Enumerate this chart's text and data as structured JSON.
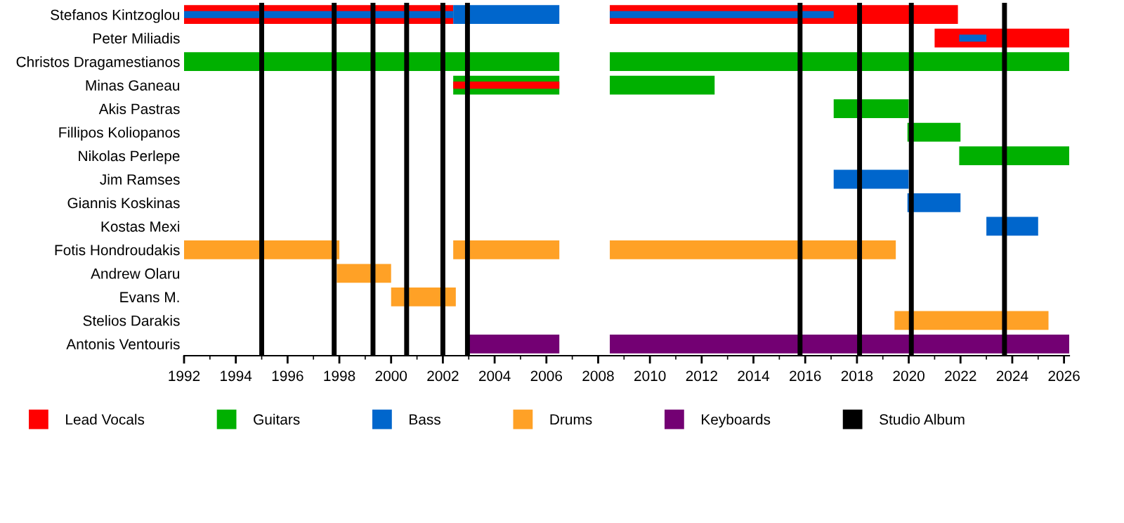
{
  "chart_data": {
    "type": "bar",
    "orientation": "horizontal",
    "categories": [
      "Stefanos Kintzoglou",
      "Peter Miliadis",
      "Christos Dragamestianos",
      "Minas Ganeau",
      "Akis Pastras",
      "Fillipos Koliopanos",
      "Nikolas Perlepe",
      "Jim Ramses",
      "Giannis Koskinas",
      "Kostas Mexi",
      "Fotis Hondroudakis",
      "Andrew Olaru",
      "Evans M.",
      "Stelios Darakis",
      "Antonis Ventouris"
    ],
    "series": [
      {
        "name": "Lead Vocals",
        "color": "#ff0000",
        "base": [
          1992,
          2021,
          null,
          null,
          null,
          null,
          null,
          null,
          null,
          null,
          null,
          null,
          null,
          null,
          null
        ],
        "values": [
          10.4,
          5.2,
          null,
          null,
          null,
          null,
          null,
          null,
          null,
          null,
          null,
          null,
          null,
          null,
          null
        ]
      },
      {
        "color": "#ff0000",
        "base": [
          2008.45,
          null,
          null,
          null,
          null,
          null,
          null,
          null,
          null,
          null,
          null,
          null,
          null,
          null,
          null
        ],
        "values": [
          13.45,
          null,
          null,
          null,
          null,
          null,
          null,
          null,
          null,
          null,
          null,
          null,
          null,
          null,
          null
        ]
      },
      {
        "name": "Guitars",
        "color": "#00b000",
        "base": [
          null,
          null,
          1992,
          2002.4,
          2017.1,
          null,
          2021.95,
          null,
          null,
          null,
          null,
          null,
          null,
          null,
          null
        ],
        "values": [
          null,
          null,
          14.5,
          4.1,
          2.9,
          null,
          4.25,
          null,
          null,
          null,
          null,
          null,
          null,
          null,
          null
        ]
      },
      {
        "color": "#00b000",
        "base": [
          null,
          null,
          2008.45,
          2008.45,
          null,
          2019.95,
          null,
          null,
          null,
          null,
          null,
          null,
          null,
          null,
          null
        ],
        "values": [
          null,
          null,
          17.75,
          4.05,
          null,
          2.05,
          null,
          null,
          null,
          null,
          null,
          null,
          null,
          null,
          null
        ]
      },
      {
        "color": "#ff0000",
        "base": [
          null,
          null,
          null,
          2002.4,
          null,
          null,
          null,
          null,
          null,
          null,
          null,
          null,
          null,
          null,
          null
        ],
        "values": [
          null,
          null,
          null,
          4.1,
          null,
          null,
          null,
          null,
          null,
          null,
          null,
          null,
          null,
          null,
          null
        ]
      },
      {
        "name": "Bass",
        "color": "#0066cc",
        "base": [
          2002.4,
          2021.95,
          null,
          null,
          null,
          null,
          null,
          2017.1,
          null,
          2023,
          null,
          null,
          null,
          null,
          null
        ],
        "values": [
          4.1,
          1.05,
          null,
          null,
          null,
          null,
          null,
          2.9,
          null,
          2.0,
          null,
          null,
          null,
          null,
          null
        ]
      },
      {
        "color": "#0066cc",
        "base": [
          1992,
          null,
          null,
          null,
          null,
          null,
          null,
          null,
          2019.95,
          null,
          null,
          null,
          null,
          null,
          null
        ],
        "values": [
          10.4,
          null,
          null,
          null,
          null,
          null,
          null,
          null,
          2.05,
          null,
          null,
          null,
          null,
          null,
          null
        ]
      },
      {
        "color": "#0066cc",
        "base": [
          2008.45,
          null,
          null,
          null,
          null,
          null,
          null,
          null,
          null,
          null,
          null,
          null,
          null,
          null,
          null
        ],
        "values": [
          8.65,
          null,
          null,
          null,
          null,
          null,
          null,
          null,
          null,
          null,
          null,
          null,
          null,
          null,
          null
        ]
      },
      {
        "name": "Drums",
        "color": "#ffa126",
        "base": [
          null,
          null,
          null,
          null,
          null,
          null,
          null,
          null,
          null,
          null,
          1992,
          1997.9,
          2000.0,
          2019.45,
          null
        ],
        "values": [
          null,
          null,
          null,
          null,
          null,
          null,
          null,
          null,
          null,
          null,
          6.0,
          2.1,
          2.5,
          5.95,
          null
        ]
      },
      {
        "color": "#ffa126",
        "base": [
          null,
          null,
          null,
          null,
          null,
          null,
          null,
          null,
          null,
          null,
          2002.4,
          null,
          null,
          null,
          null
        ],
        "values": [
          null,
          null,
          null,
          null,
          null,
          null,
          null,
          null,
          null,
          null,
          4.1,
          null,
          null,
          null,
          null
        ]
      },
      {
        "color": "#ffa126",
        "base": [
          null,
          null,
          null,
          null,
          null,
          null,
          null,
          null,
          null,
          null,
          2008.45,
          null,
          null,
          null,
          null
        ],
        "values": [
          null,
          null,
          null,
          null,
          null,
          null,
          null,
          null,
          null,
          null,
          11.05,
          null,
          null,
          null,
          null
        ]
      },
      {
        "name": "Keyboards",
        "color": "#730073",
        "base": [
          null,
          null,
          null,
          null,
          null,
          null,
          null,
          null,
          null,
          null,
          null,
          null,
          null,
          null,
          2003.0
        ],
        "values": [
          null,
          null,
          null,
          null,
          null,
          null,
          null,
          null,
          null,
          null,
          null,
          null,
          null,
          null,
          3.5
        ]
      },
      {
        "color": "#730073",
        "base": [
          null,
          null,
          null,
          null,
          null,
          null,
          null,
          null,
          null,
          null,
          null,
          null,
          null,
          null,
          2008.45
        ],
        "values": [
          null,
          null,
          null,
          null,
          null,
          null,
          null,
          null,
          null,
          null,
          null,
          null,
          null,
          null,
          17.75
        ]
      }
    ],
    "ref_lines": [
      {
        "axis": "x",
        "value": 1995.0,
        "label": "Studio Album",
        "color": "#000000"
      },
      {
        "axis": "x",
        "value": 1997.8,
        "color": "#000000"
      },
      {
        "axis": "x",
        "value": 1999.3,
        "color": "#000000"
      },
      {
        "axis": "x",
        "value": 2000.6,
        "color": "#000000"
      },
      {
        "axis": "x",
        "value": 2002.0,
        "color": "#000000"
      },
      {
        "axis": "x",
        "value": 2002.95,
        "color": "#000000"
      },
      {
        "axis": "x",
        "value": 2015.8,
        "color": "#000000"
      },
      {
        "axis": "x",
        "value": 2018.1,
        "color": "#000000"
      },
      {
        "axis": "x",
        "value": 2020.1,
        "color": "#000000"
      },
      {
        "axis": "x",
        "value": 2023.7,
        "color": "#000000"
      }
    ],
    "xlim": [
      1992,
      2026.2
    ],
    "xticks": [
      1992,
      1994,
      1996,
      1998,
      2000,
      2002,
      2004,
      2006,
      2008,
      2010,
      2012,
      2014,
      2016,
      2018,
      2020,
      2022,
      2024,
      2026
    ],
    "grid": false,
    "legend": "bottom",
    "marker": "square"
  }
}
